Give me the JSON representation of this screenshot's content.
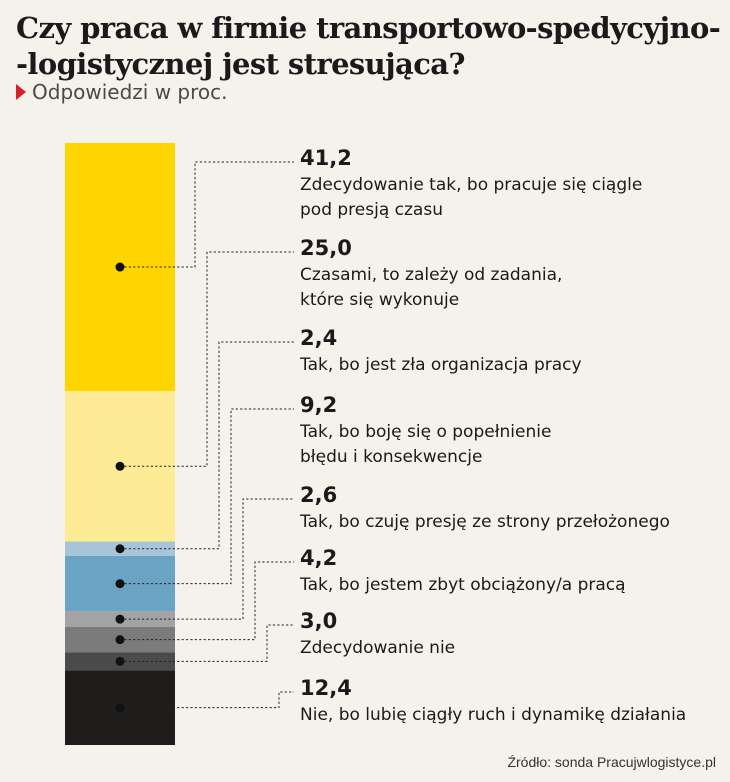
{
  "header": {
    "title_line1": "Czy praca w firmie transportowo-spedycyjno-",
    "title_line2": "-logistycznej jest stresująca?",
    "subtitle": "Odpowiedzi w proc."
  },
  "footer": {
    "source": "Źródło: sonda Pracujwlogistyce.pl"
  },
  "chart_data": {
    "type": "bar",
    "stacked": true,
    "title": "Czy praca w firmie transportowo-spedycyjno--logistycznej jest stresująca?",
    "subtitle": "Odpowiedzi w proc.",
    "total": 100,
    "segments": [
      {
        "value": 41.2,
        "value_label": "41,2",
        "label": [
          "Zdecydowanie tak, bo pracuje się ciągle",
          "pod presją czasu"
        ],
        "color": "#ffd500"
      },
      {
        "value": 25.0,
        "value_label": "25,0",
        "label": [
          "Czasami, to zależy od zadania,",
          "które się wykonuje"
        ],
        "color": "#fdeb96"
      },
      {
        "value": 2.4,
        "value_label": "2,4",
        "label": [
          "Tak, bo jest zła organizacja pracy"
        ],
        "color": "#a8c4d8"
      },
      {
        "value": 9.2,
        "value_label": "9,2",
        "label": [
          "Tak, bo boję się o popełnienie",
          "błędu i konsekwencje"
        ],
        "color": "#6aa3c4"
      },
      {
        "value": 2.6,
        "value_label": "2,6",
        "label": [
          "Tak, bo czuję presję ze strony przełożonego"
        ],
        "color": "#a3a3a3"
      },
      {
        "value": 4.2,
        "value_label": "4,2",
        "label": [
          "Tak, bo jestem zbyt obciążony/a pracą"
        ],
        "color": "#7b7b7b"
      },
      {
        "value": 3.0,
        "value_label": "3,0",
        "label": [
          "Zdecydowanie nie"
        ],
        "color": "#4b4b4b"
      },
      {
        "value": 12.4,
        "value_label": "12,4",
        "label": [
          "Nie, bo lubię ciągły ruch i dynamikę działania"
        ],
        "color": "#1f1d1c"
      }
    ]
  }
}
